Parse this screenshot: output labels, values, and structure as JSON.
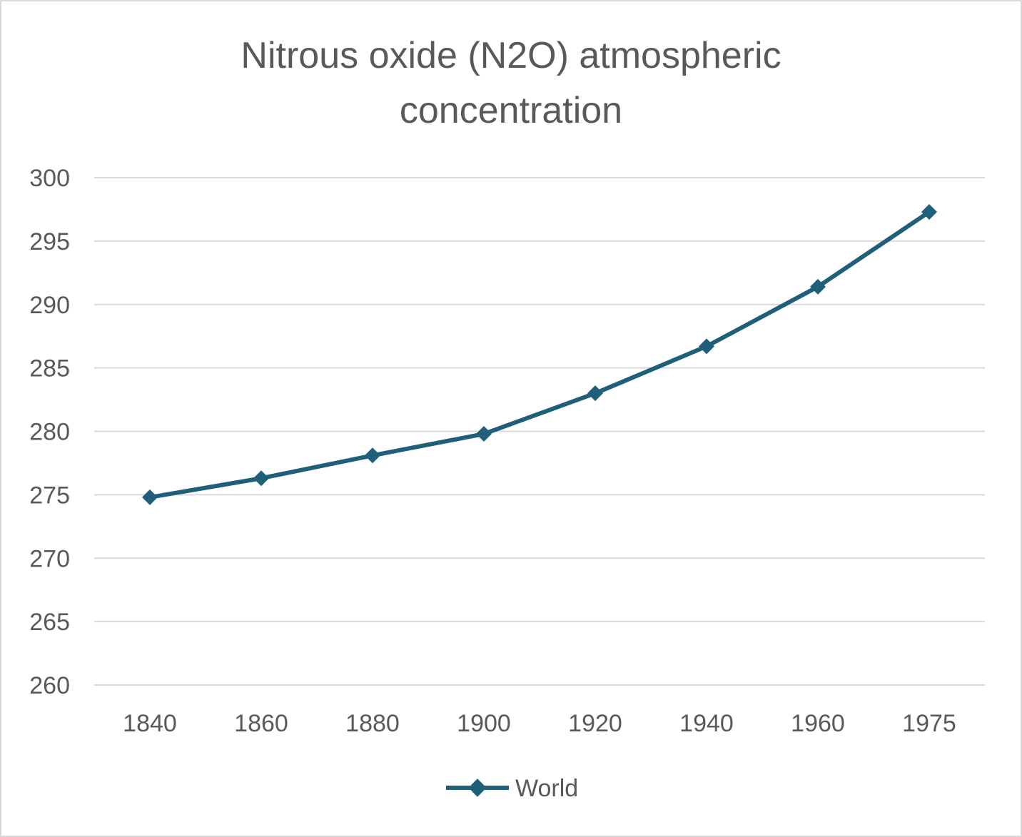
{
  "chart_data": {
    "type": "line",
    "title": "Nitrous oxide (N2O) atmospheric concentration",
    "title_lines": [
      "Nitrous oxide (N2O) atmospheric",
      "concentration"
    ],
    "categories": [
      "1840",
      "1860",
      "1880",
      "1900",
      "1920",
      "1940",
      "1960",
      "1975"
    ],
    "series": [
      {
        "name": "World",
        "values": [
          274.8,
          276.3,
          278.1,
          279.8,
          283.0,
          286.7,
          291.4,
          297.3
        ],
        "color": "#1f5f7a"
      }
    ],
    "ylim": [
      260,
      300
    ],
    "yticks": [
      "260",
      "265",
      "270",
      "275",
      "280",
      "285",
      "290",
      "295",
      "300"
    ],
    "grid": true,
    "legend_position": "bottom"
  }
}
